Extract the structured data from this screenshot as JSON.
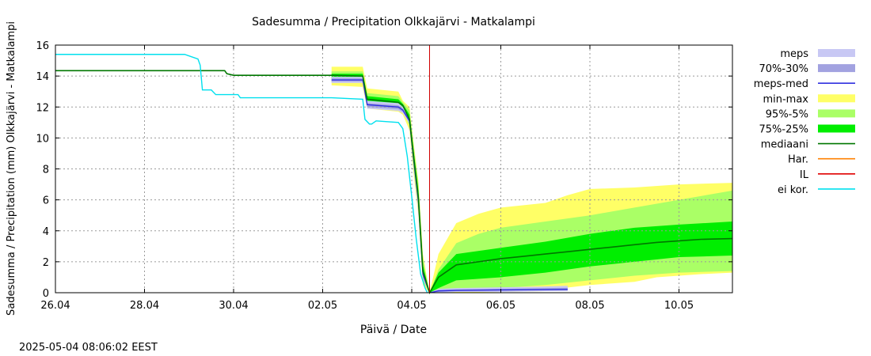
{
  "chart_data": {
    "type": "area",
    "title": "Sadesumma / Precipitation  Olkkajärvi - Matkalampi",
    "xlabel": "Päivä / Date",
    "ylabel": "Sadesumma / Precipitation (mm)  Olkkajärvi - Matkalampi",
    "xlim": [
      0,
      15.2
    ],
    "ylim": [
      0,
      16
    ],
    "x_tick_positions": [
      0,
      2,
      4,
      6,
      8,
      10,
      12,
      14
    ],
    "x_tick_labels": [
      "26.04",
      "28.04",
      "30.04",
      "02.05",
      "04.05",
      "06.05",
      "08.05",
      "10.05"
    ],
    "y_ticks": [
      0,
      2,
      4,
      6,
      8,
      10,
      12,
      14,
      16
    ],
    "grid": true,
    "legend_position": "right",
    "il_x": 8.4,
    "timestamp": "2025-05-04 08:06:02 EEST",
    "legend": [
      {
        "key": "meps",
        "label": "meps",
        "kind": "box",
        "color": "#c8c8f4"
      },
      {
        "key": "meps7030",
        "label": "70%-30%",
        "kind": "box",
        "color": "#a2a2e0"
      },
      {
        "key": "mepsmed",
        "label": "meps-med",
        "kind": "line",
        "color": "#3030e0"
      },
      {
        "key": "minmax",
        "label": "min-max",
        "kind": "box",
        "color": "#ffff66"
      },
      {
        "key": "p95",
        "label": "95%-5%",
        "kind": "box",
        "color": "#aaff66"
      },
      {
        "key": "p75",
        "label": "75%-25%",
        "kind": "box",
        "color": "#00ee00"
      },
      {
        "key": "median",
        "label": "mediaani",
        "kind": "line",
        "color": "#007700"
      },
      {
        "key": "har",
        "label": "Har.",
        "kind": "line",
        "color": "#ff8000"
      },
      {
        "key": "il",
        "label": "IL",
        "kind": "line",
        "color": "#e00000"
      },
      {
        "key": "eikor",
        "label": "ei kor.",
        "kind": "line",
        "color": "#00e0ee"
      }
    ],
    "series": [
      {
        "name": "min-max",
        "kind": "band",
        "color": "#ffff66",
        "upper": [
          [
            6.2,
            14.6
          ],
          [
            6.9,
            14.6
          ],
          [
            7.0,
            13.2
          ],
          [
            7.7,
            13.0
          ],
          [
            7.8,
            12.4
          ],
          [
            7.95,
            12.0
          ],
          [
            8.05,
            9.5
          ],
          [
            8.15,
            7.2
          ],
          [
            8.25,
            2.5
          ],
          [
            8.4,
            0
          ],
          [
            8.6,
            2.5
          ],
          [
            9.0,
            4.5
          ],
          [
            9.5,
            5.1
          ],
          [
            10.0,
            5.5
          ],
          [
            11.0,
            5.8
          ],
          [
            11.5,
            6.3
          ],
          [
            12.0,
            6.7
          ],
          [
            13.0,
            6.8
          ],
          [
            14.0,
            7.0
          ],
          [
            15.2,
            7.1
          ]
        ],
        "lower": [
          [
            6.2,
            13.4
          ],
          [
            6.9,
            13.3
          ],
          [
            7.0,
            11.9
          ],
          [
            7.7,
            11.7
          ],
          [
            7.8,
            11.5
          ],
          [
            7.95,
            10.5
          ],
          [
            8.05,
            7.5
          ],
          [
            8.15,
            5.0
          ],
          [
            8.25,
            0.5
          ],
          [
            8.4,
            0
          ],
          [
            8.6,
            0
          ],
          [
            9.0,
            0
          ],
          [
            10.0,
            0.05
          ],
          [
            11.0,
            0.1
          ],
          [
            11.4,
            0.3
          ],
          [
            12.0,
            0.5
          ],
          [
            13.0,
            0.7
          ],
          [
            13.5,
            1.0
          ],
          [
            14.5,
            1.2
          ],
          [
            15.2,
            1.3
          ]
        ]
      },
      {
        "name": "95%-5%",
        "kind": "band",
        "color": "#aaff66",
        "upper": [
          [
            6.2,
            14.3
          ],
          [
            6.9,
            14.3
          ],
          [
            7.0,
            12.9
          ],
          [
            7.7,
            12.7
          ],
          [
            7.8,
            12.3
          ],
          [
            7.95,
            11.8
          ],
          [
            8.05,
            9.3
          ],
          [
            8.15,
            7.0
          ],
          [
            8.25,
            2.2
          ],
          [
            8.4,
            0
          ],
          [
            8.6,
            1.5
          ],
          [
            9.0,
            3.2
          ],
          [
            9.5,
            3.8
          ],
          [
            10.0,
            4.2
          ],
          [
            11.0,
            4.6
          ],
          [
            12.0,
            5.0
          ],
          [
            13.0,
            5.5
          ],
          [
            14.0,
            6.0
          ],
          [
            15.2,
            6.6
          ]
        ],
        "lower": [
          [
            6.2,
            13.6
          ],
          [
            6.9,
            13.6
          ],
          [
            7.0,
            12.1
          ],
          [
            7.7,
            11.9
          ],
          [
            7.8,
            11.7
          ],
          [
            7.95,
            10.8
          ],
          [
            8.05,
            7.8
          ],
          [
            8.15,
            5.3
          ],
          [
            8.25,
            0.8
          ],
          [
            8.4,
            0
          ],
          [
            8.6,
            0.1
          ],
          [
            9.0,
            0.2
          ],
          [
            10.0,
            0.3
          ],
          [
            11.0,
            0.5
          ],
          [
            12.0,
            0.8
          ],
          [
            13.0,
            1.1
          ],
          [
            14.0,
            1.3
          ],
          [
            15.2,
            1.4
          ]
        ]
      },
      {
        "name": "75%-25%",
        "kind": "band",
        "color": "#00ee00",
        "upper": [
          [
            6.2,
            14.15
          ],
          [
            6.9,
            14.15
          ],
          [
            7.0,
            12.7
          ],
          [
            7.7,
            12.5
          ],
          [
            7.8,
            12.2
          ],
          [
            7.95,
            11.5
          ],
          [
            8.05,
            9.0
          ],
          [
            8.15,
            6.6
          ],
          [
            8.25,
            1.8
          ],
          [
            8.4,
            0
          ],
          [
            8.6,
            1.3
          ],
          [
            9.0,
            2.5
          ],
          [
            10.0,
            2.9
          ],
          [
            11.0,
            3.3
          ],
          [
            12.0,
            3.8
          ],
          [
            13.0,
            4.2
          ],
          [
            14.0,
            4.4
          ],
          [
            15.2,
            4.6
          ]
        ],
        "lower": [
          [
            6.2,
            13.85
          ],
          [
            6.9,
            13.85
          ],
          [
            7.0,
            12.3
          ],
          [
            7.7,
            12.1
          ],
          [
            7.8,
            11.9
          ],
          [
            7.95,
            11.0
          ],
          [
            8.05,
            8.2
          ],
          [
            8.15,
            5.6
          ],
          [
            8.25,
            1.0
          ],
          [
            8.4,
            0
          ],
          [
            8.6,
            0.3
          ],
          [
            9.0,
            0.8
          ],
          [
            10.0,
            1.0
          ],
          [
            11.0,
            1.3
          ],
          [
            12.0,
            1.7
          ],
          [
            13.0,
            2.0
          ],
          [
            14.0,
            2.3
          ],
          [
            15.2,
            2.4
          ]
        ]
      },
      {
        "name": "meps",
        "kind": "band",
        "color": "#c8c8f4",
        "upper": [
          [
            6.2,
            13.95
          ],
          [
            6.9,
            13.95
          ],
          [
            7.0,
            12.4
          ],
          [
            7.7,
            12.25
          ],
          [
            7.8,
            12.0
          ],
          [
            7.95,
            11.3
          ],
          [
            8.05,
            8.8
          ],
          [
            8.15,
            6.3
          ],
          [
            8.25,
            1.5
          ],
          [
            8.4,
            0
          ],
          [
            8.6,
            0.25
          ],
          [
            9.0,
            0.3
          ],
          [
            10.0,
            0.35
          ],
          [
            11.0,
            0.4
          ],
          [
            11.5,
            0.45
          ]
        ],
        "lower": [
          [
            6.2,
            13.55
          ],
          [
            6.9,
            13.55
          ],
          [
            7.0,
            11.9
          ],
          [
            7.7,
            11.75
          ],
          [
            7.8,
            11.6
          ],
          [
            7.95,
            10.9
          ],
          [
            8.05,
            8.0
          ],
          [
            8.15,
            5.3
          ],
          [
            8.25,
            0.9
          ],
          [
            8.4,
            0
          ],
          [
            8.6,
            0
          ],
          [
            9.0,
            0.05
          ],
          [
            10.0,
            0.05
          ],
          [
            11.0,
            0.1
          ],
          [
            11.5,
            0.1
          ]
        ]
      },
      {
        "name": "70%-30%",
        "kind": "band",
        "color": "#a2a2e0",
        "upper": [
          [
            6.2,
            13.85
          ],
          [
            6.9,
            13.85
          ],
          [
            7.0,
            12.25
          ],
          [
            7.7,
            12.1
          ],
          [
            7.8,
            11.9
          ],
          [
            7.95,
            11.2
          ],
          [
            8.05,
            8.6
          ],
          [
            8.15,
            6.1
          ],
          [
            8.25,
            1.3
          ],
          [
            8.4,
            0
          ],
          [
            8.6,
            0.18
          ],
          [
            9.0,
            0.22
          ],
          [
            10.0,
            0.25
          ],
          [
            11.0,
            0.3
          ],
          [
            11.5,
            0.32
          ]
        ],
        "lower": [
          [
            6.2,
            13.65
          ],
          [
            6.9,
            13.65
          ],
          [
            7.0,
            12.0
          ],
          [
            7.7,
            11.85
          ],
          [
            7.8,
            11.7
          ],
          [
            7.95,
            11.0
          ],
          [
            8.05,
            8.2
          ],
          [
            8.15,
            5.6
          ],
          [
            8.25,
            1.0
          ],
          [
            8.4,
            0
          ],
          [
            8.6,
            0.05
          ],
          [
            9.0,
            0.1
          ],
          [
            10.0,
            0.12
          ],
          [
            11.0,
            0.15
          ],
          [
            11.5,
            0.15
          ]
        ]
      },
      {
        "name": "meps-med",
        "kind": "line",
        "color": "#3030e0",
        "points": [
          [
            6.2,
            13.75
          ],
          [
            6.9,
            13.75
          ],
          [
            7.0,
            12.15
          ],
          [
            7.7,
            12.0
          ],
          [
            7.8,
            11.8
          ],
          [
            7.95,
            11.1
          ],
          [
            8.05,
            8.4
          ],
          [
            8.15,
            5.9
          ],
          [
            8.25,
            1.2
          ],
          [
            8.4,
            0
          ],
          [
            8.6,
            0.12
          ],
          [
            9.0,
            0.15
          ],
          [
            10.0,
            0.18
          ],
          [
            11.0,
            0.2
          ],
          [
            11.5,
            0.22
          ]
        ]
      },
      {
        "name": "mediaani",
        "kind": "line",
        "color": "#007700",
        "points": [
          [
            0,
            14.35
          ],
          [
            3.8,
            14.35
          ],
          [
            3.85,
            14.15
          ],
          [
            4.0,
            14.05
          ],
          [
            6.2,
            14.05
          ],
          [
            6.9,
            14.0
          ],
          [
            7.0,
            12.5
          ],
          [
            7.7,
            12.3
          ],
          [
            7.8,
            12.1
          ],
          [
            7.95,
            11.2
          ],
          [
            8.05,
            8.6
          ],
          [
            8.15,
            6.1
          ],
          [
            8.25,
            1.4
          ],
          [
            8.4,
            0
          ],
          [
            8.6,
            1.0
          ],
          [
            9.0,
            1.8
          ],
          [
            9.5,
            2.0
          ],
          [
            10.0,
            2.2
          ],
          [
            10.5,
            2.35
          ],
          [
            11.0,
            2.5
          ],
          [
            11.5,
            2.65
          ],
          [
            12.0,
            2.8
          ],
          [
            12.5,
            2.95
          ],
          [
            13.0,
            3.1
          ],
          [
            13.5,
            3.25
          ],
          [
            14.0,
            3.35
          ],
          [
            14.5,
            3.45
          ],
          [
            15.2,
            3.5
          ]
        ]
      },
      {
        "name": "ei kor.",
        "kind": "line",
        "color": "#00e0ee",
        "points": [
          [
            0,
            15.4
          ],
          [
            2.9,
            15.4
          ],
          [
            3.2,
            15.1
          ],
          [
            3.25,
            14.7
          ],
          [
            3.3,
            13.1
          ],
          [
            3.5,
            13.1
          ],
          [
            3.6,
            12.8
          ],
          [
            4.1,
            12.8
          ],
          [
            4.15,
            12.6
          ],
          [
            6.2,
            12.6
          ],
          [
            6.9,
            12.5
          ],
          [
            6.95,
            11.2
          ],
          [
            7.05,
            10.9
          ],
          [
            7.1,
            10.9
          ],
          [
            7.2,
            11.1
          ],
          [
            7.7,
            11.0
          ],
          [
            7.8,
            10.6
          ],
          [
            7.9,
            8.8
          ],
          [
            8.0,
            6.2
          ],
          [
            8.1,
            3.5
          ],
          [
            8.2,
            1.2
          ],
          [
            8.3,
            0.3
          ],
          [
            8.35,
            0
          ]
        ]
      }
    ]
  }
}
